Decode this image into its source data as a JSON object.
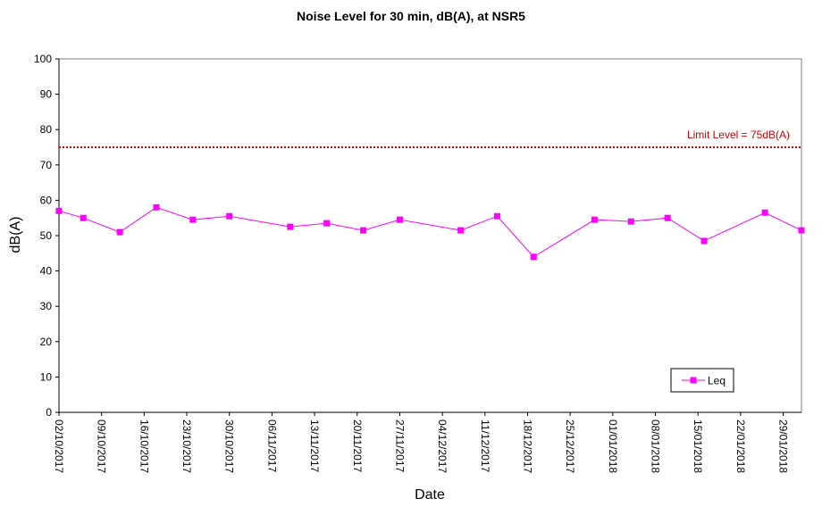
{
  "chart_data": {
    "type": "line",
    "title": "Noise Level for 30 min, dB(A), at NSR5",
    "xlabel": "Date",
    "ylabel": "dB(A)",
    "ylim": [
      0,
      100
    ],
    "yticks": [
      0,
      10,
      20,
      30,
      40,
      50,
      60,
      70,
      80,
      90,
      100
    ],
    "xlim": [
      "2017-10-02",
      "2018-02-01"
    ],
    "x_tick_labels": [
      "02/10/2017",
      "09/10/2017",
      "16/10/2017",
      "23/10/2017",
      "30/10/2017",
      "06/11/2017",
      "13/11/2017",
      "20/11/2017",
      "27/11/2017",
      "04/12/2017",
      "11/12/2017",
      "18/12/2017",
      "25/12/2017",
      "01/01/2018",
      "08/01/2018",
      "15/01/2018",
      "22/01/2018",
      "29/01/2018"
    ],
    "grid": false,
    "legend_position": "bottom-right",
    "series": [
      {
        "name": "Leq",
        "color": "#ff00ff",
        "marker": "square",
        "x": [
          "2017-10-02",
          "2017-10-06",
          "2017-10-12",
          "2017-10-18",
          "2017-10-24",
          "2017-10-30",
          "2017-11-09",
          "2017-11-15",
          "2017-11-21",
          "2017-11-27",
          "2017-12-07",
          "2017-12-13",
          "2017-12-19",
          "2017-12-29",
          "2018-01-04",
          "2018-01-10",
          "2018-01-16",
          "2018-01-26",
          "2018-02-01"
        ],
        "y": [
          57,
          55,
          51,
          58,
          54.5,
          55.5,
          52.5,
          53.5,
          51.5,
          54.5,
          51.5,
          55.5,
          44,
          54.5,
          54,
          55,
          48.5,
          56.5,
          51.5
        ]
      }
    ],
    "reference_line": {
      "value": 75,
      "label": "Limit Level = 75dB(A)",
      "color": "#cc0000",
      "style": "dotted"
    }
  }
}
